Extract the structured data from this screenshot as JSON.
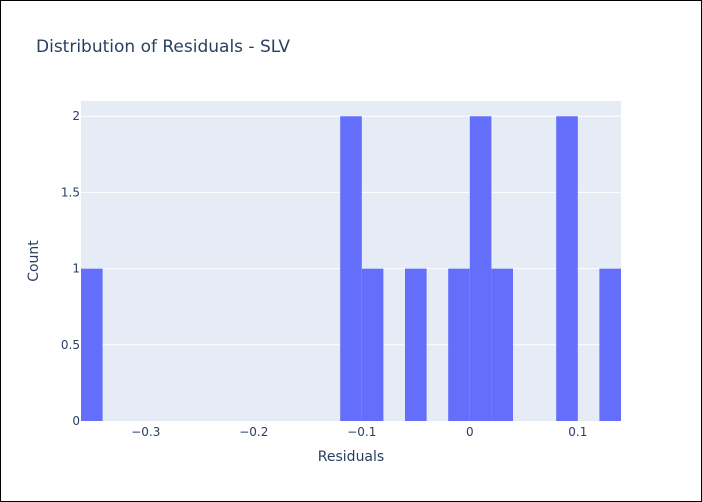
{
  "chart_data": {
    "type": "bar",
    "title": "Distribution of Residuals - SLV",
    "xlabel": "Residuals",
    "ylabel": "Count",
    "xlim": [
      -0.36,
      0.14
    ],
    "ylim": [
      0,
      2.1
    ],
    "grid": true,
    "legend": "none",
    "colors": {
      "bar": "#636efa",
      "plot_background": "#e5ecf6",
      "text": "#2a3f5f"
    },
    "x_ticks": [
      {
        "value": -0.3,
        "label": "−0.3"
      },
      {
        "value": -0.2,
        "label": "−0.2"
      },
      {
        "value": -0.1,
        "label": "−0.1"
      },
      {
        "value": 0,
        "label": "0"
      },
      {
        "value": 0.1,
        "label": "0.1"
      }
    ],
    "y_ticks": [
      {
        "value": 0,
        "label": "0"
      },
      {
        "value": 0.5,
        "label": "0.5"
      },
      {
        "value": 1,
        "label": "1"
      },
      {
        "value": 1.5,
        "label": "1.5"
      },
      {
        "value": 2,
        "label": "2"
      }
    ],
    "bins": [
      {
        "start": -0.36,
        "end": -0.34,
        "count": 1
      },
      {
        "start": -0.12,
        "end": -0.1,
        "count": 2
      },
      {
        "start": -0.1,
        "end": -0.08,
        "count": 1
      },
      {
        "start": -0.06,
        "end": -0.04,
        "count": 1
      },
      {
        "start": -0.02,
        "end": 0.0,
        "count": 1
      },
      {
        "start": 0.0,
        "end": 0.02,
        "count": 2
      },
      {
        "start": 0.02,
        "end": 0.04,
        "count": 1
      },
      {
        "start": 0.08,
        "end": 0.1,
        "count": 2
      },
      {
        "start": 0.12,
        "end": 0.14,
        "count": 1
      }
    ]
  }
}
